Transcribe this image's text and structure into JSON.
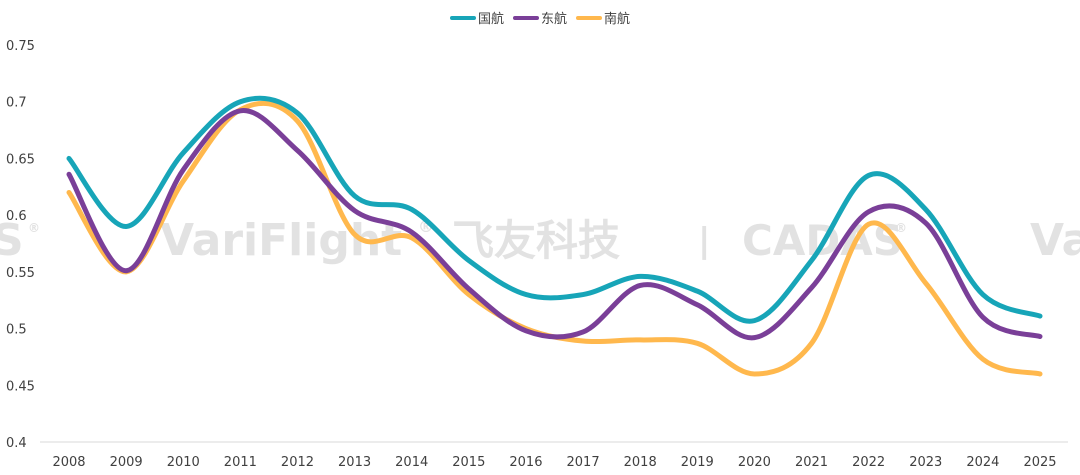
{
  "chart_data": {
    "type": "line",
    "title": "",
    "xlabel": "",
    "ylabel": "",
    "x": [
      "2008",
      "2009",
      "2010",
      "2011",
      "2012",
      "2013",
      "2014",
      "2015",
      "2016",
      "2017",
      "2018",
      "2019",
      "2020",
      "2021",
      "2022",
      "2023",
      "2024",
      "2025"
    ],
    "ylim": [
      0.4,
      0.75
    ],
    "yticks": [
      0.4,
      0.45,
      0.5,
      0.55,
      0.6,
      0.65,
      0.7,
      0.75
    ],
    "ytick_labels": [
      "0.4",
      "0.45",
      "0.5",
      "0.55",
      "0.6",
      "0.65",
      "0.7",
      "0.75"
    ],
    "grid": false,
    "legend_position": "top-center",
    "series": [
      {
        "name": "国航",
        "color": "#17a5b8",
        "values": [
          0.65,
          0.59,
          0.655,
          0.7,
          0.69,
          0.617,
          0.605,
          0.56,
          0.53,
          0.53,
          0.546,
          0.533,
          0.507,
          0.56,
          0.635,
          0.605,
          0.53,
          0.511
        ]
      },
      {
        "name": "东航",
        "color": "#7a3f98",
        "values": [
          0.636,
          0.551,
          0.64,
          0.692,
          0.657,
          0.604,
          0.585,
          0.535,
          0.498,
          0.497,
          0.538,
          0.521,
          0.492,
          0.536,
          0.603,
          0.593,
          0.51,
          0.493
        ]
      },
      {
        "name": "南航",
        "color": "#ffb84d",
        "values": [
          0.62,
          0.55,
          0.63,
          0.693,
          0.683,
          0.583,
          0.58,
          0.53,
          0.5,
          0.489,
          0.49,
          0.487,
          0.46,
          0.487,
          0.592,
          0.54,
          0.473,
          0.46
        ]
      }
    ]
  },
  "watermark": {
    "brand": "VariFlight",
    "brand_cn": "飞友科技",
    "separator": "|",
    "partner": "CADAS",
    "registered": "®",
    "left_fragment": "S",
    "right_fragment": "Va"
  }
}
